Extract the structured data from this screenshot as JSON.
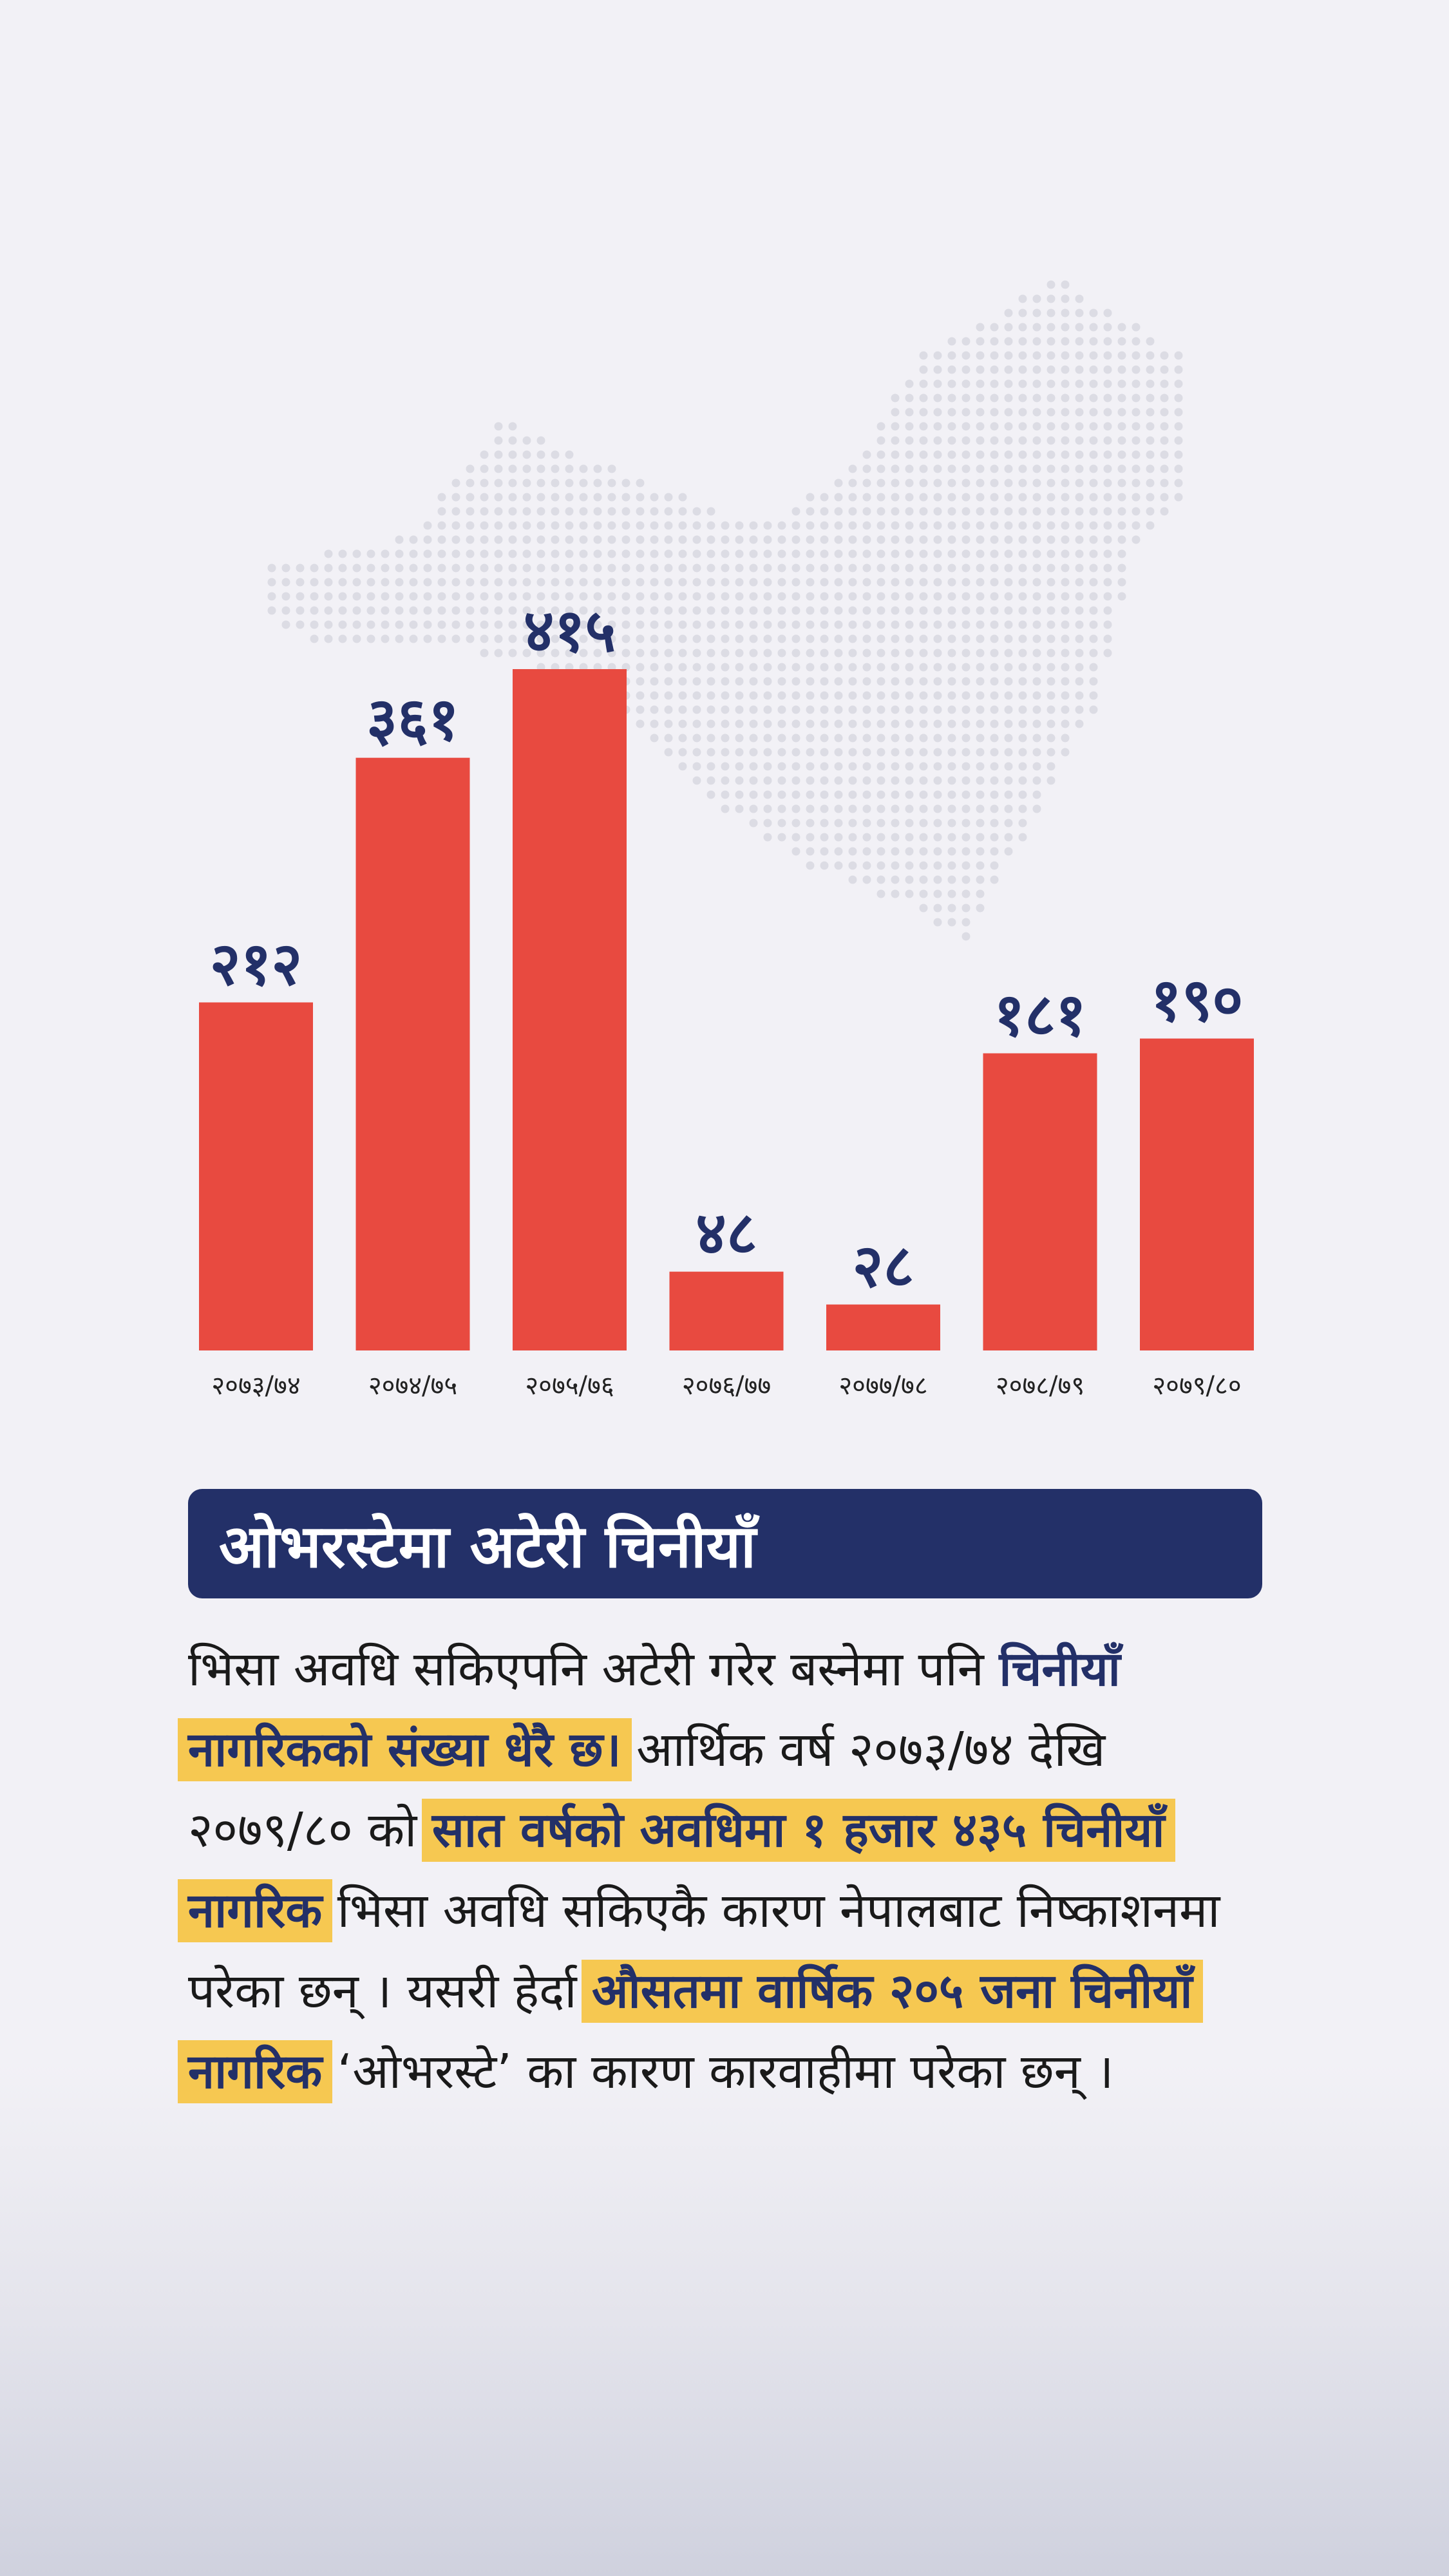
{
  "chart_data": {
    "type": "bar",
    "categories": [
      "२०७३/७४",
      "२०७४/७५",
      "२०७५/७६",
      "२०७६/७७",
      "२०७७/७८",
      "२०७८/७९",
      "२०७९/८०"
    ],
    "values": [
      212,
      361,
      415,
      48,
      28,
      181,
      190
    ],
    "value_labels": [
      "२१२",
      "३६१",
      "४१५",
      "४८",
      "२८",
      "१८१",
      "१९०"
    ],
    "bar_color": "#e84a40",
    "label_color": "#233068",
    "ylim": [
      0,
      415
    ],
    "grid": false,
    "title": "",
    "xlabel": "",
    "ylabel": ""
  },
  "heading": "ओभरस्टेमा अटेरी चिनीयाँ",
  "paragraph": {
    "p1": "भिसा अवधि सकिएपनि अटेरी गरेर बस्नेमा पनि ",
    "p2": "चिनीयाँ",
    "p3": "नागरिकको संख्या धेरै छ।",
    "p4": " आर्थिक वर्ष २०७३/७४ देखि २०७९/८० को ",
    "p5": "सात वर्षको अवधिमा १ हजार ४३५ चिनीयाँ नागरिक",
    "p6": " भिसा अवधि सकिएकै कारण नेपालबाट निष्काशनमा परेका छन् । यसरी हेर्दा ",
    "p7": "औसतमा वार्षिक २०५ जना चिनीयाँ नागरिक",
    "p8": " ‘ओभरस्टे’ का कारण कारवाहीमा परेका छन् ।"
  },
  "colors": {
    "background": "#f2f1f6",
    "heading_bg": "#233068",
    "highlight": "#f6c851",
    "map_dots": "#dcdce4"
  },
  "decoration": {
    "background_icon": "china-map-dots-icon"
  }
}
